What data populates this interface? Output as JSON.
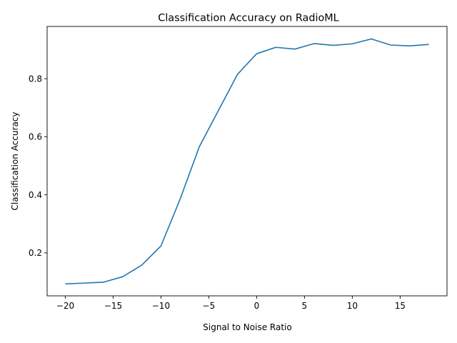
{
  "chart_data": {
    "type": "line",
    "title": "Classification Accuracy on RadioML",
    "xlabel": "Signal to Noise Ratio",
    "ylabel": "Classification Accuracy",
    "xlim": [
      -21.9,
      19.9
    ],
    "ylim": [
      0.052,
      0.98
    ],
    "xticks": [
      -20,
      -15,
      -10,
      -5,
      0,
      5,
      10,
      15
    ],
    "xtick_labels": [
      "−20",
      "−15",
      "−10",
      "−5",
      "0",
      "5",
      "10",
      "15"
    ],
    "yticks": [
      0.2,
      0.4,
      0.6,
      0.8
    ],
    "ytick_labels": [
      "0.2",
      "0.4",
      "0.6",
      "0.8"
    ],
    "grid": false,
    "series": [
      {
        "color": "#1f77b4",
        "x": [
          -20,
          -18,
          -16,
          -14,
          -12,
          -10,
          -8,
          -6,
          -4,
          -2,
          0,
          2,
          4,
          6,
          8,
          10,
          12,
          14,
          16,
          18
        ],
        "y": [
          0.093,
          0.096,
          0.099,
          0.118,
          0.158,
          0.224,
          0.385,
          0.565,
          0.69,
          0.815,
          0.886,
          0.908,
          0.902,
          0.921,
          0.915,
          0.92,
          0.937,
          0.916,
          0.913,
          0.918
        ]
      }
    ]
  }
}
